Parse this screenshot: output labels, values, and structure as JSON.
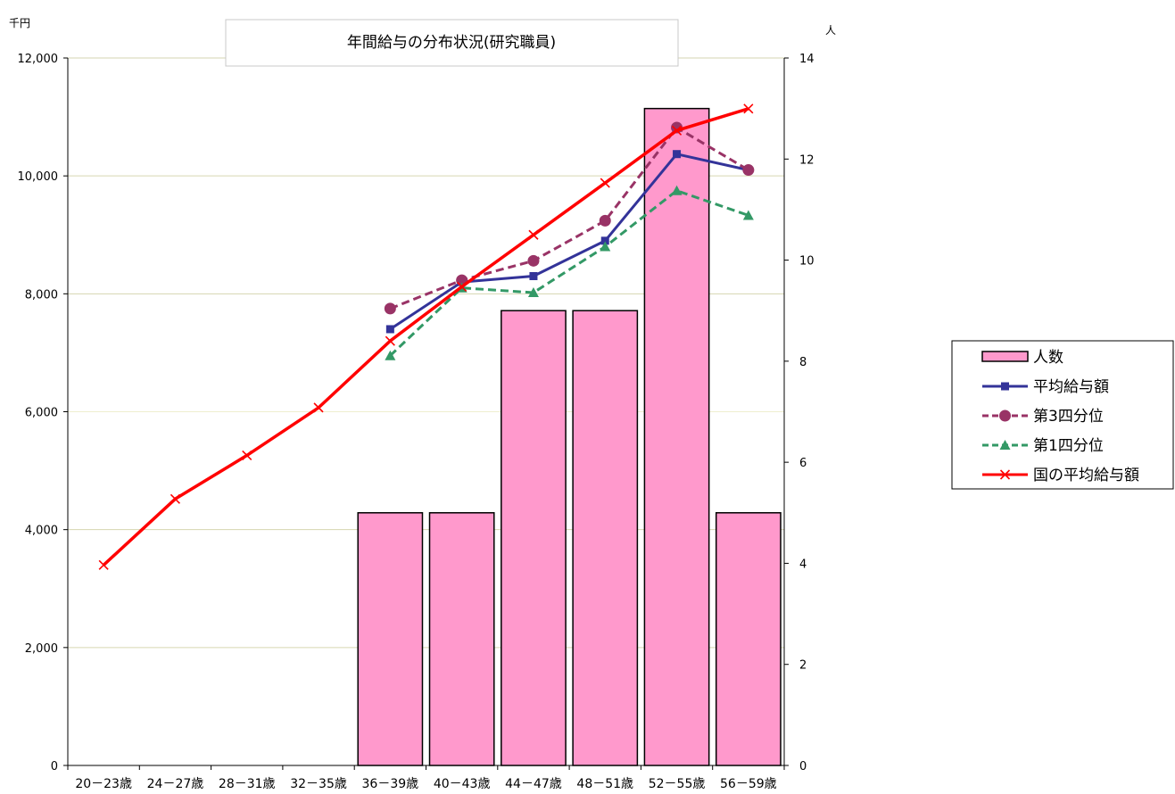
{
  "chart_data": {
    "type": "bar+line",
    "title": "年間給与の分布状況(研究職員)",
    "y_left_unit": "千円",
    "y_right_unit": "人",
    "ylim_left": [
      0,
      12000
    ],
    "ylim_right": [
      0,
      14
    ],
    "y_left_ticks": [
      "0",
      "2,000",
      "4,000",
      "6,000",
      "8,000",
      "10,000",
      "12,000"
    ],
    "y_right_ticks": [
      "0",
      "2",
      "4",
      "6",
      "8",
      "10",
      "12",
      "14"
    ],
    "y_left_tick_values": [
      0,
      2000,
      4000,
      6000,
      8000,
      10000,
      12000
    ],
    "y_right_tick_values": [
      0,
      2,
      4,
      6,
      8,
      10,
      12,
      14
    ],
    "categories": [
      "20－23歳",
      "24－27歳",
      "28－31歳",
      "32－35歳",
      "36－39歳",
      "40－43歳",
      "44－47歳",
      "48－51歳",
      "52－55歳",
      "56－59歳"
    ],
    "grid": true,
    "legend_position": "right",
    "series": [
      {
        "name": "人数",
        "kind": "bar",
        "axis": "right",
        "color": "#ff99cc",
        "values": [
          null,
          null,
          null,
          null,
          5,
          5,
          9,
          9,
          13,
          5
        ]
      },
      {
        "name": "平均給与額",
        "kind": "line",
        "axis": "left",
        "color": "#333399",
        "dash": "solid",
        "marker": "square",
        "values": [
          null,
          null,
          null,
          null,
          7400,
          8200,
          8300,
          8900,
          10370,
          10100
        ]
      },
      {
        "name": "第3四分位",
        "kind": "line",
        "axis": "left",
        "color": "#993366",
        "dash": "dashed",
        "marker": "circle",
        "values": [
          null,
          null,
          null,
          null,
          7750,
          8230,
          8560,
          9240,
          10820,
          10100
        ]
      },
      {
        "name": "第1四分位",
        "kind": "line",
        "axis": "left",
        "color": "#339966",
        "dash": "dashed",
        "marker": "triangle",
        "values": [
          null,
          null,
          null,
          null,
          6950,
          8100,
          8020,
          8800,
          9750,
          9330
        ]
      },
      {
        "name": "国の平均給与額",
        "kind": "line",
        "axis": "left",
        "color": "#ff0000",
        "dash": "solid",
        "marker": "x",
        "values": [
          3400,
          4520,
          5260,
          6070,
          7200,
          8120,
          9000,
          9880,
          10770,
          11140
        ]
      }
    ]
  }
}
